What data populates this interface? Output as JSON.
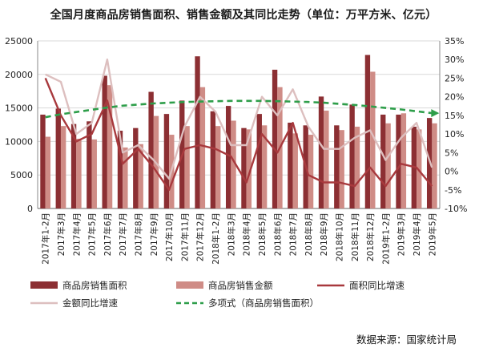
{
  "title": "全国月度商品房销售面积、销售金额及其同比走势（单位：万平方米、亿元）",
  "source": "数据来源：国家统计局",
  "colors": {
    "area_bar": "#8c2f33",
    "amount_bar": "#cf8c86",
    "area_yoy": "#a8393d",
    "amount_yoy": "#ddbfbf",
    "trend": "#2e9e4a",
    "grid": "#d8d8d8"
  },
  "chart_data": {
    "type": "bar",
    "categories": [
      "2017年1-2月",
      "2017年3月",
      "2017年4月",
      "2017年5月",
      "2017年6月",
      "2017年7月",
      "2017年8月",
      "2017年9月",
      "2017年10月",
      "2017年11月",
      "2017年12月",
      "2018年1-2月",
      "2018年3月",
      "2018年4月",
      "2018年5月",
      "2018年6月",
      "2018年7月",
      "2018年8月",
      "2018年9月",
      "2018年10月",
      "2018年11月",
      "2018年12月",
      "2019年1-2月",
      "2019年3月",
      "2019年4月",
      "2019年5月"
    ],
    "ylim_left": [
      0,
      25000
    ],
    "yticks_left": [
      "0",
      "5000",
      "10000",
      "15000",
      "20000",
      "25000"
    ],
    "ylim_right": [
      -10,
      35
    ],
    "yticks_right": [
      "-10%",
      "-5%",
      "0%",
      "5%",
      "10%",
      "15%",
      "20%",
      "25%",
      "30%",
      "35%"
    ],
    "grid": true,
    "legend_position": "bottom",
    "series": [
      {
        "name": "商品房销售面积",
        "kind": "bar",
        "axis": "left",
        "values": [
          14000,
          14900,
          12600,
          13000,
          19800,
          11600,
          12000,
          17400,
          14100,
          16100,
          22700,
          14500,
          15300,
          12000,
          14100,
          20700,
          12800,
          12400,
          16700,
          12400,
          15500,
          22900,
          14000,
          14000,
          12200,
          13500
        ]
      },
      {
        "name": "商品房销售金额",
        "kind": "bar",
        "axis": "left",
        "values": [
          10700,
          12300,
          10400,
          10300,
          18400,
          9100,
          9600,
          13800,
          11000,
          12300,
          18100,
          12300,
          13100,
          11800,
          12400,
          18100,
          11200,
          11000,
          14600,
          11700,
          12200,
          20400,
          12700,
          14200,
          11800,
          12700
        ]
      },
      {
        "name": "面积同比增速",
        "kind": "line",
        "axis": "right",
        "values": [
          25,
          15,
          8,
          10,
          19,
          2,
          6,
          1,
          -5,
          6,
          7,
          6,
          4,
          -3,
          10,
          5,
          13,
          -1,
          -3,
          -3,
          -4,
          1,
          -4,
          2,
          1,
          -4
        ]
      },
      {
        "name": "金额同比增速",
        "kind": "line",
        "axis": "right",
        "values": [
          26,
          24,
          10,
          13,
          30,
          5,
          7,
          3,
          -2,
          12,
          20,
          16,
          7,
          7,
          20,
          15,
          22,
          12,
          6,
          6,
          9,
          11,
          3,
          9,
          13,
          1
        ]
      },
      {
        "name": "多项式（商品房销售面积）",
        "kind": "trend",
        "axis": "right",
        "values": [
          14.5,
          15.3,
          15.9,
          16.5,
          17.1,
          17.6,
          17.9,
          18.2,
          18.4,
          18.6,
          18.7,
          18.8,
          18.9,
          18.9,
          18.9,
          18.8,
          18.7,
          18.6,
          18.4,
          18.1,
          17.8,
          17.4,
          17,
          16.6,
          16.1,
          15.6
        ]
      }
    ]
  }
}
